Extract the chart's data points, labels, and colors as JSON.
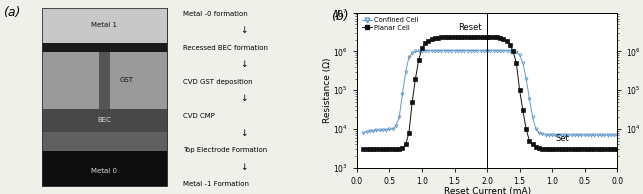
{
  "panel_a_label": "(a)",
  "panel_b_label": "(b)",
  "process_steps": [
    "Metal -0 formation",
    "Recessed BEC formation",
    "CVD GST deposition",
    "CVD CMP",
    "Top Electrode Formation",
    "Metal -1 Formation"
  ],
  "xlabel": "Reset Current (mA)",
  "ylabel": "Resistance (Ω)",
  "legend_confined": "Confined Cell",
  "legend_planar": "Planar Cell",
  "ann_reset": "Reset",
  "ann_set": "Set",
  "confined_up_x": [
    0.1,
    0.15,
    0.2,
    0.25,
    0.3,
    0.35,
    0.4,
    0.45,
    0.5,
    0.55,
    0.6,
    0.65,
    0.7,
    0.75,
    0.8,
    0.85,
    0.9,
    0.95,
    1.0,
    1.05,
    1.1,
    1.15,
    1.2,
    1.25,
    1.3,
    1.35,
    1.4,
    1.45,
    1.5,
    1.55,
    1.6,
    1.65,
    1.7,
    1.75,
    1.8,
    1.85,
    1.9,
    1.95,
    2.0
  ],
  "confined_up_y": [
    8000,
    8500,
    9000,
    9000,
    9200,
    9200,
    9500,
    9500,
    9800,
    10000.0,
    12000.0,
    20000.0,
    80000.0,
    300000.0,
    700000.0,
    900000.0,
    1000000.0,
    1000000.0,
    1050000.0,
    1050000.0,
    1050000.0,
    1050000.0,
    1050000.0,
    1050000.0,
    1050000.0,
    1050000.0,
    1050000.0,
    1050000.0,
    1050000.0,
    1050000.0,
    1050000.0,
    1050000.0,
    1050000.0,
    1050000.0,
    1050000.0,
    1050000.0,
    1050000.0,
    1050000.0,
    1050000.0
  ],
  "confined_down_x": [
    2.0,
    1.95,
    1.9,
    1.85,
    1.8,
    1.75,
    1.7,
    1.65,
    1.6,
    1.55,
    1.5,
    1.45,
    1.4,
    1.35,
    1.3,
    1.25,
    1.2,
    1.15,
    1.1,
    1.05,
    1.0,
    0.95,
    0.9,
    0.85,
    0.8,
    0.75,
    0.7,
    0.65,
    0.6,
    0.55,
    0.5,
    0.45,
    0.4,
    0.35,
    0.3,
    0.25,
    0.2,
    0.15,
    0.1,
    0.05,
    0.0
  ],
  "confined_down_y": [
    1050000.0,
    1050000.0,
    1050000.0,
    1050000.0,
    1050000.0,
    1050000.0,
    1050000.0,
    1050000.0,
    1000000.0,
    950000.0,
    800000.0,
    500000.0,
    200000.0,
    60000.0,
    20000.0,
    10000.0,
    8000,
    7500,
    7000,
    7000,
    7000,
    7000,
    7000,
    7000,
    7000,
    7000,
    7000,
    7000,
    7000,
    7000,
    7000,
    7000,
    7000,
    7000,
    7000,
    7000,
    7000,
    7000,
    7000,
    7000,
    7000
  ],
  "planar_up_x": [
    0.1,
    0.15,
    0.2,
    0.25,
    0.3,
    0.35,
    0.4,
    0.45,
    0.5,
    0.55,
    0.6,
    0.65,
    0.7,
    0.75,
    0.8,
    0.85,
    0.9,
    0.95,
    1.0,
    1.05,
    1.1,
    1.15,
    1.2,
    1.25,
    1.3,
    1.35,
    1.4,
    1.45,
    1.5,
    1.55,
    1.6,
    1.65,
    1.7,
    1.75,
    1.8,
    1.85,
    1.9,
    1.95,
    2.0
  ],
  "planar_up_y": [
    3000,
    3000,
    3000,
    3000,
    3000,
    3000,
    3000,
    3000,
    3000,
    3000,
    3000,
    3000,
    3200,
    4000,
    8000,
    50000.0,
    200000.0,
    600000.0,
    1200000.0,
    1600000.0,
    1900000.0,
    2100000.0,
    2200000.0,
    2250000.0,
    2300000.0,
    2300000.0,
    2300000.0,
    2300000.0,
    2300000.0,
    2300000.0,
    2300000.0,
    2300000.0,
    2300000.0,
    2300000.0,
    2300000.0,
    2300000.0,
    2300000.0,
    2300000.0,
    2300000.0
  ],
  "planar_down_x": [
    2.0,
    1.95,
    1.9,
    1.85,
    1.8,
    1.75,
    1.7,
    1.65,
    1.6,
    1.55,
    1.5,
    1.45,
    1.4,
    1.35,
    1.3,
    1.25,
    1.2,
    1.15,
    1.1,
    1.05,
    1.0,
    0.95,
    0.9,
    0.85,
    0.8,
    0.75,
    0.7,
    0.65,
    0.6,
    0.55,
    0.5,
    0.45,
    0.4,
    0.35,
    0.3,
    0.25,
    0.2,
    0.15,
    0.1,
    0.05,
    0.0
  ],
  "planar_down_y": [
    2300000.0,
    2300000.0,
    2300000.0,
    2300000.0,
    2200000.0,
    2100000.0,
    1900000.0,
    1500000.0,
    1000000.0,
    500000.0,
    100000.0,
    30000.0,
    10000.0,
    5000,
    4000,
    3500,
    3200,
    3000,
    3000,
    3000,
    3000,
    3000,
    3000,
    3000,
    3000,
    3000,
    3000,
    3000,
    3000,
    3000,
    3000,
    3000,
    3000,
    3000,
    3000,
    3000,
    3000,
    3000,
    3000,
    3000,
    3000
  ],
  "confined_color": "#6699cc",
  "planar_color": "#111111",
  "bg_color": "#f0f0eb",
  "graph_bg": "#ffffff"
}
